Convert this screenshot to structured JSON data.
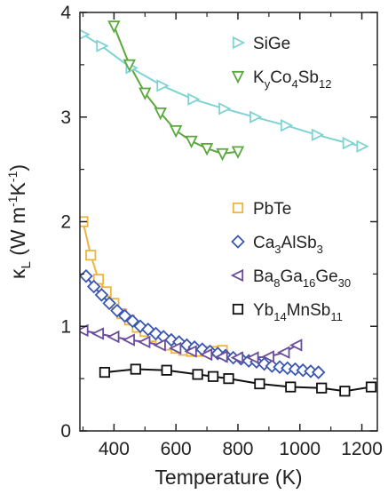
{
  "chart_data": {
    "type": "line",
    "xlabel": "Temperature (K)",
    "ylabel": {
      "base": "κ",
      "sub": "L",
      "units": " (W m",
      "exp1": "-1",
      "mid": "K",
      "exp2": "-1",
      "close": ")"
    },
    "xlim": [
      290,
      1250
    ],
    "ylim": [
      0,
      4
    ],
    "xticks": [
      400,
      600,
      800,
      1000,
      1200
    ],
    "yticks": [
      0,
      1,
      2,
      3,
      4
    ],
    "grid": false,
    "legend_placement": "right",
    "series": [
      {
        "name": "SiGe",
        "label_parts": [
          {
            "t": "SiGe",
            "s": "n"
          }
        ],
        "color": "#7fd3d3",
        "marker": "triangle-right",
        "legend_group": "upper",
        "x": [
          300,
          360,
          455,
          555,
          655,
          755,
          855,
          955,
          1055,
          1155,
          1200
        ],
        "y": [
          3.79,
          3.68,
          3.47,
          3.3,
          3.17,
          3.08,
          3.0,
          2.92,
          2.83,
          2.75,
          2.72
        ]
      },
      {
        "name": "KyCo4Sb12",
        "label_parts": [
          {
            "t": "K",
            "s": "n"
          },
          {
            "t": "y",
            "s": "sub"
          },
          {
            "t": "Co",
            "s": "n"
          },
          {
            "t": "4",
            "s": "sub"
          },
          {
            "t": "Sb",
            "s": "n"
          },
          {
            "t": "12",
            "s": "sub"
          }
        ],
        "color": "#5aa83c",
        "marker": "triangle-down",
        "legend_group": "upper",
        "x": [
          400,
          450,
          500,
          550,
          600,
          650,
          700,
          750,
          800
        ],
        "y": [
          3.87,
          3.5,
          3.23,
          3.04,
          2.87,
          2.77,
          2.7,
          2.65,
          2.67
        ]
      },
      {
        "name": "PbTe",
        "label_parts": [
          {
            "t": "PbTe",
            "s": "n"
          }
        ],
        "color": "#f1b43a",
        "marker": "square",
        "legend_group": "lower",
        "x": [
          300,
          325,
          350,
          375,
          400,
          425,
          450,
          475,
          500,
          525,
          550,
          575,
          600,
          625,
          650,
          675,
          700,
          725,
          750
        ],
        "y": [
          2.0,
          1.68,
          1.45,
          1.33,
          1.22,
          1.12,
          1.06,
          0.99,
          0.95,
          0.9,
          0.86,
          0.82,
          0.79,
          0.77,
          0.76,
          0.76,
          0.76,
          0.76,
          0.77
        ]
      },
      {
        "name": "Ca3AlSb3",
        "label_parts": [
          {
            "t": "Ca",
            "s": "n"
          },
          {
            "t": "3",
            "s": "sub"
          },
          {
            "t": "AlSb",
            "s": "n"
          },
          {
            "t": "3",
            "s": "sub"
          }
        ],
        "color": "#3a57b0",
        "marker": "diamond",
        "legend_group": "lower",
        "x": [
          310,
          335,
          360,
          385,
          410,
          435,
          460,
          485,
          510,
          535,
          560,
          585,
          610,
          635,
          660,
          685,
          710,
          735,
          760,
          785,
          810,
          835,
          860,
          885,
          910,
          935,
          960,
          985,
          1010,
          1035,
          1060
        ],
        "y": [
          1.48,
          1.38,
          1.3,
          1.22,
          1.15,
          1.1,
          1.05,
          1.0,
          0.97,
          0.93,
          0.9,
          0.87,
          0.85,
          0.82,
          0.8,
          0.78,
          0.76,
          0.74,
          0.72,
          0.7,
          0.69,
          0.67,
          0.66,
          0.64,
          0.62,
          0.61,
          0.6,
          0.59,
          0.58,
          0.57,
          0.56
        ]
      },
      {
        "name": "Ba8Ga16Ge30",
        "label_parts": [
          {
            "t": "Ba",
            "s": "n"
          },
          {
            "t": "8",
            "s": "sub"
          },
          {
            "t": "Ga",
            "s": "n"
          },
          {
            "t": "16",
            "s": "sub"
          },
          {
            "t": "Ge",
            "s": "n"
          },
          {
            "t": "30",
            "s": "sub"
          }
        ],
        "color": "#6a4c9c",
        "marker": "triangle-left",
        "legend_group": "lower",
        "x": [
          300,
          350,
          400,
          450,
          500,
          550,
          600,
          650,
          700,
          750,
          800,
          850,
          900,
          950,
          990
        ],
        "y": [
          0.96,
          0.93,
          0.9,
          0.87,
          0.85,
          0.82,
          0.79,
          0.76,
          0.73,
          0.71,
          0.7,
          0.7,
          0.71,
          0.75,
          0.82
        ]
      },
      {
        "name": "Yb14MnSb11",
        "label_parts": [
          {
            "t": "Yb",
            "s": "n"
          },
          {
            "t": "14",
            "s": "sub"
          },
          {
            "t": "MnSb",
            "s": "n"
          },
          {
            "t": "11",
            "s": "sub"
          }
        ],
        "color": "#111111",
        "marker": "square-open",
        "legend_group": "lower",
        "x": [
          370,
          470,
          570,
          670,
          720,
          770,
          870,
          970,
          1070,
          1145,
          1230
        ],
        "y": [
          0.56,
          0.59,
          0.58,
          0.54,
          0.52,
          0.5,
          0.45,
          0.42,
          0.41,
          0.38,
          0.42
        ]
      }
    ]
  }
}
